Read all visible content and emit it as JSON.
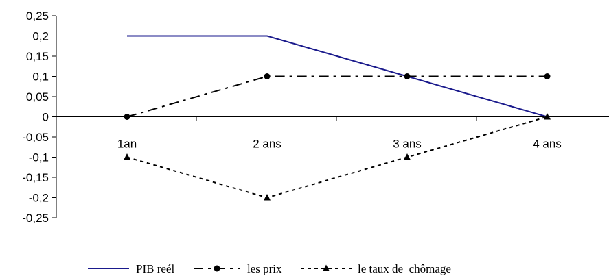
{
  "chart_data": {
    "type": "line",
    "categories": [
      "1an",
      "2 ans",
      "3 ans",
      "4 ans"
    ],
    "ylim": [
      -0.25,
      0.25
    ],
    "y_ticks": [
      0.25,
      0.2,
      0.15,
      0.1,
      0.05,
      0,
      -0.05,
      -0.1,
      -0.15,
      -0.2,
      -0.25
    ],
    "y_tick_labels": [
      "0,25",
      "0,2",
      "0,15",
      "0,1",
      "0,05",
      "0",
      "-0,05",
      "-0,1",
      "-0,15",
      "-0,2",
      "-0,25"
    ],
    "grid": false,
    "legend_position": "bottom",
    "series": [
      {
        "name": "PIB reél",
        "values": [
          0.2,
          0.2,
          0.1,
          0
        ],
        "color": "#1a1a8c",
        "dash": "solid",
        "marker": "none"
      },
      {
        "name": "les prix",
        "values": [
          0,
          0.1,
          0.1,
          0.1
        ],
        "color": "#000000",
        "dash": "dashdot",
        "marker": "circle"
      },
      {
        "name": "le taux de  chômage",
        "values": [
          -0.1,
          -0.2,
          -0.1,
          0
        ],
        "color": "#000000",
        "dash": "dotted",
        "marker": "triangle"
      }
    ]
  }
}
